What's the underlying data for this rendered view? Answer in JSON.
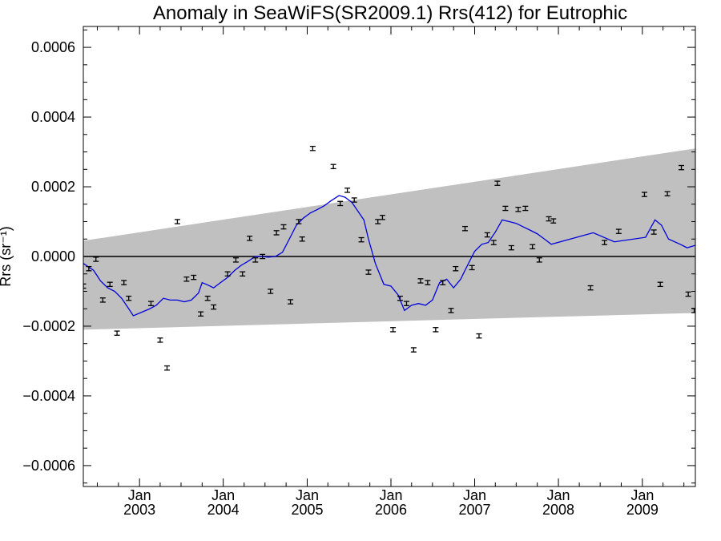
{
  "chart_data": {
    "type": "scatter",
    "title": "Anomaly in SeaWiFS(SR2009.1) Rrs(412) for Eutrophic",
    "ylabel": "Rrs (sr⁻¹)",
    "xlim": [
      "2002-05-01",
      "2009-08-20"
    ],
    "ylim": [
      -0.00066,
      0.00066
    ],
    "y_ticks": [
      -0.0006,
      -0.0004,
      -0.0002,
      0.0,
      0.0002,
      0.0004,
      0.0006
    ],
    "y_tick_labels": [
      "−0.0006",
      "−0.0004",
      "−0.0002",
      "0.0000",
      "0.0002",
      "0.0004",
      "0.0006"
    ],
    "x_ticks": [
      {
        "date": "2003-01-01",
        "month": "Jan",
        "year": "2003"
      },
      {
        "date": "2004-01-01",
        "month": "Jan",
        "year": "2004"
      },
      {
        "date": "2005-01-01",
        "month": "Jan",
        "year": "2005"
      },
      {
        "date": "2006-01-01",
        "month": "Jan",
        "year": "2006"
      },
      {
        "date": "2007-01-01",
        "month": "Jan",
        "year": "2007"
      },
      {
        "date": "2008-01-01",
        "month": "Jan",
        "year": "2008"
      },
      {
        "date": "2009-01-01",
        "month": "Jan",
        "year": "2009"
      }
    ],
    "grid": false,
    "zero_line": true,
    "colors": {
      "band": "#c0c0c0",
      "line": "#0000dd",
      "points": "#000000",
      "zero_line": "#000000"
    },
    "series": [
      {
        "type": "band",
        "points": [
          {
            "x": "2002-05-01",
            "upper": 4.5e-05,
            "lower": -0.00021
          },
          {
            "x": "2009-08-20",
            "upper": 0.00031,
            "lower": -0.000162
          }
        ]
      },
      {
        "type": "line",
        "points": [
          {
            "x": "2002-05-01",
            "y": -2e-05
          },
          {
            "x": "2002-06-15",
            "y": -4e-05
          },
          {
            "x": "2002-07-15",
            "y": -7e-05
          },
          {
            "x": "2002-08-15",
            "y": -9e-05
          },
          {
            "x": "2002-09-15",
            "y": -0.0001
          },
          {
            "x": "2002-10-15",
            "y": -0.00012
          },
          {
            "x": "2002-11-15",
            "y": -0.00015
          },
          {
            "x": "2002-12-05",
            "y": -0.00017
          },
          {
            "x": "2003-02-15",
            "y": -0.00015
          },
          {
            "x": "2003-03-15",
            "y": -0.00014
          },
          {
            "x": "2003-04-15",
            "y": -0.00012
          },
          {
            "x": "2003-05-15",
            "y": -0.000125
          },
          {
            "x": "2003-06-15",
            "y": -0.000125
          },
          {
            "x": "2003-07-15",
            "y": -0.00013
          },
          {
            "x": "2003-08-15",
            "y": -0.000125
          },
          {
            "x": "2003-09-15",
            "y": -0.000105
          },
          {
            "x": "2003-10-01",
            "y": -7.5e-05
          },
          {
            "x": "2003-10-20",
            "y": -8e-05
          },
          {
            "x": "2003-11-20",
            "y": -9e-05
          },
          {
            "x": "2003-12-20",
            "y": -7.5e-05
          },
          {
            "x": "2004-01-20",
            "y": -6e-05
          },
          {
            "x": "2004-02-20",
            "y": -4e-05
          },
          {
            "x": "2004-03-20",
            "y": -2.5e-05
          },
          {
            "x": "2004-04-15",
            "y": -1.5e-05
          },
          {
            "x": "2004-05-20",
            "y": 0.0
          },
          {
            "x": "2004-06-15",
            "y": 0.0
          },
          {
            "x": "2004-07-15",
            "y": -2e-06
          },
          {
            "x": "2004-08-15",
            "y": 0.0
          },
          {
            "x": "2004-09-15",
            "y": 1.2e-05
          },
          {
            "x": "2004-10-15",
            "y": 5e-05
          },
          {
            "x": "2004-11-15",
            "y": 9e-05
          },
          {
            "x": "2004-12-15",
            "y": 0.00011
          },
          {
            "x": "2005-01-15",
            "y": 0.000125
          },
          {
            "x": "2005-02-15",
            "y": 0.000135
          },
          {
            "x": "2005-03-15",
            "y": 0.000145
          },
          {
            "x": "2005-04-15",
            "y": 0.00016
          },
          {
            "x": "2005-05-20",
            "y": 0.000175
          },
          {
            "x": "2005-06-15",
            "y": 0.00017
          },
          {
            "x": "2005-07-15",
            "y": 0.000155
          },
          {
            "x": "2005-08-10",
            "y": 0.00013
          },
          {
            "x": "2005-09-05",
            "y": 0.000105
          },
          {
            "x": "2005-09-25",
            "y": 5e-05
          },
          {
            "x": "2005-10-25",
            "y": -2e-05
          },
          {
            "x": "2005-12-01",
            "y": -8e-05
          },
          {
            "x": "2006-01-01",
            "y": -8.5e-05
          },
          {
            "x": "2006-02-01",
            "y": -0.00011
          },
          {
            "x": "2006-03-01",
            "y": -0.000155
          },
          {
            "x": "2006-04-01",
            "y": -0.00014
          },
          {
            "x": "2006-05-01",
            "y": -0.000135
          },
          {
            "x": "2006-06-01",
            "y": -0.00014
          },
          {
            "x": "2006-07-01",
            "y": -0.000125
          },
          {
            "x": "2006-08-01",
            "y": -7.5e-05
          },
          {
            "x": "2006-09-01",
            "y": -6.5e-05
          },
          {
            "x": "2006-10-01",
            "y": -9e-05
          },
          {
            "x": "2006-11-01",
            "y": -6.5e-05
          },
          {
            "x": "2006-12-01",
            "y": -2.5e-05
          },
          {
            "x": "2007-01-01",
            "y": 1.5e-05
          },
          {
            "x": "2007-02-01",
            "y": 3.5e-05
          },
          {
            "x": "2007-03-01",
            "y": 4e-05
          },
          {
            "x": "2007-04-01",
            "y": 7e-05
          },
          {
            "x": "2007-05-01",
            "y": 0.000105
          },
          {
            "x": "2007-06-01",
            "y": 0.0001
          },
          {
            "x": "2007-07-01",
            "y": 9.5e-05
          },
          {
            "x": "2007-08-01",
            "y": 8.5e-05
          },
          {
            "x": "2007-09-01",
            "y": 7.5e-05
          },
          {
            "x": "2007-10-01",
            "y": 6.5e-05
          },
          {
            "x": "2007-11-01",
            "y": 5e-05
          },
          {
            "x": "2007-12-01",
            "y": 3.5e-05
          },
          {
            "x": "2008-06-01",
            "y": 6.8e-05
          },
          {
            "x": "2008-09-01",
            "y": 4.2e-05
          },
          {
            "x": "2009-01-15",
            "y": 5.5e-05
          },
          {
            "x": "2009-02-25",
            "y": 0.000105
          },
          {
            "x": "2009-03-25",
            "y": 9e-05
          },
          {
            "x": "2009-04-25",
            "y": 5e-05
          },
          {
            "x": "2009-06-15",
            "y": 3.5e-05
          },
          {
            "x": "2009-07-15",
            "y": 2.5e-05
          },
          {
            "x": "2009-08-20",
            "y": 3.2e-05
          }
        ]
      },
      {
        "type": "errorbar",
        "err": 6e-06,
        "points": [
          {
            "x": "2002-05-01",
            "y": -8.5e-05
          },
          {
            "x": "2002-05-25",
            "y": -3.5e-05
          },
          {
            "x": "2002-06-25",
            "y": -8e-06
          },
          {
            "x": "2002-07-25",
            "y": -0.000125
          },
          {
            "x": "2002-08-25",
            "y": -8e-05
          },
          {
            "x": "2002-09-25",
            "y": -0.00022
          },
          {
            "x": "2002-10-25",
            "y": -7.5e-05
          },
          {
            "x": "2002-11-15",
            "y": -0.00012
          },
          {
            "x": "2003-02-20",
            "y": -0.000135
          },
          {
            "x": "2003-04-01",
            "y": -0.00024
          },
          {
            "x": "2003-05-01",
            "y": -0.00032
          },
          {
            "x": "2003-06-15",
            "y": 0.0001
          },
          {
            "x": "2003-07-25",
            "y": -6.5e-05
          },
          {
            "x": "2003-08-25",
            "y": -6e-05
          },
          {
            "x": "2003-09-25",
            "y": -0.000165
          },
          {
            "x": "2003-10-25",
            "y": -0.00012
          },
          {
            "x": "2003-11-20",
            "y": -0.000145
          },
          {
            "x": "2004-01-20",
            "y": -5e-05
          },
          {
            "x": "2004-02-25",
            "y": -1e-05
          },
          {
            "x": "2004-03-25",
            "y": -5e-05
          },
          {
            "x": "2004-04-25",
            "y": 5.2e-05
          },
          {
            "x": "2004-05-20",
            "y": -1e-05
          },
          {
            "x": "2004-06-20",
            "y": 0.0
          },
          {
            "x": "2004-07-25",
            "y": -0.0001
          },
          {
            "x": "2004-08-20",
            "y": 6.8e-05
          },
          {
            "x": "2004-09-20",
            "y": 8.5e-05
          },
          {
            "x": "2004-10-20",
            "y": -0.00013
          },
          {
            "x": "2004-11-25",
            "y": 0.0001
          },
          {
            "x": "2004-12-10",
            "y": 5e-05
          },
          {
            "x": "2005-01-25",
            "y": 0.00031
          },
          {
            "x": "2005-04-25",
            "y": 0.000258
          },
          {
            "x": "2005-05-25",
            "y": 0.000152
          },
          {
            "x": "2005-06-25",
            "y": 0.00019
          },
          {
            "x": "2005-07-25",
            "y": 0.000162
          },
          {
            "x": "2005-08-25",
            "y": 4.8e-05
          },
          {
            "x": "2005-09-25",
            "y": -4.5e-05
          },
          {
            "x": "2005-11-05",
            "y": 0.0001
          },
          {
            "x": "2005-11-25",
            "y": 0.000112
          },
          {
            "x": "2006-01-10",
            "y": -0.00021
          },
          {
            "x": "2006-02-10",
            "y": -0.00012
          },
          {
            "x": "2006-03-10",
            "y": -0.000135
          },
          {
            "x": "2006-04-10",
            "y": -0.000268
          },
          {
            "x": "2006-05-10",
            "y": -7e-05
          },
          {
            "x": "2006-06-10",
            "y": -7.5e-05
          },
          {
            "x": "2006-07-15",
            "y": -0.00021
          },
          {
            "x": "2006-08-15",
            "y": -7.5e-05
          },
          {
            "x": "2006-09-20",
            "y": -0.000155
          },
          {
            "x": "2006-10-10",
            "y": -3.5e-05
          },
          {
            "x": "2006-11-20",
            "y": 8e-05
          },
          {
            "x": "2006-12-20",
            "y": -3.2e-05
          },
          {
            "x": "2007-01-20",
            "y": -0.000228
          },
          {
            "x": "2007-02-25",
            "y": 6.2e-05
          },
          {
            "x": "2007-03-25",
            "y": 4e-05
          },
          {
            "x": "2007-04-10",
            "y": 0.00021
          },
          {
            "x": "2007-05-15",
            "y": 0.000138
          },
          {
            "x": "2007-06-10",
            "y": 2.5e-05
          },
          {
            "x": "2007-07-10",
            "y": 0.000135
          },
          {
            "x": "2007-08-10",
            "y": 0.000138
          },
          {
            "x": "2007-09-10",
            "y": 2.8e-05
          },
          {
            "x": "2007-10-10",
            "y": -1e-05
          },
          {
            "x": "2007-11-20",
            "y": 0.000108
          },
          {
            "x": "2007-12-10",
            "y": 0.000102
          },
          {
            "x": "2008-05-20",
            "y": -9e-05
          },
          {
            "x": "2008-07-20",
            "y": 4e-05
          },
          {
            "x": "2008-09-20",
            "y": 7.2e-05
          },
          {
            "x": "2009-01-10",
            "y": 0.000178
          },
          {
            "x": "2009-02-20",
            "y": 7e-05
          },
          {
            "x": "2009-03-20",
            "y": -8e-05
          },
          {
            "x": "2009-04-20",
            "y": 0.00018
          },
          {
            "x": "2009-06-20",
            "y": 0.000255
          },
          {
            "x": "2009-07-20",
            "y": -0.000108
          },
          {
            "x": "2009-08-15",
            "y": -0.000155
          }
        ]
      }
    ]
  }
}
